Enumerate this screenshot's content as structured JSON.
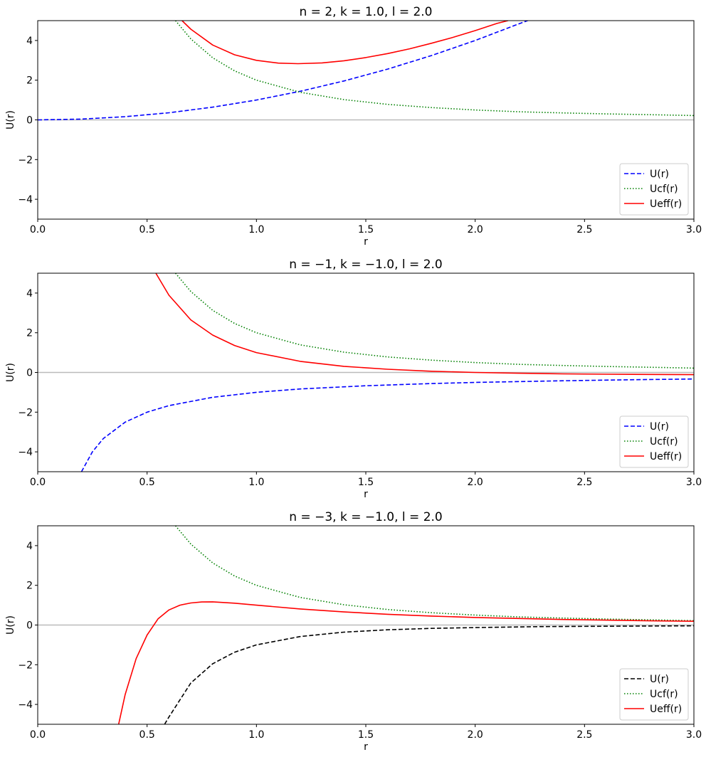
{
  "chart_data": [
    {
      "type": "line",
      "title": "n = 2,   k = 1.0,   l = 2.0",
      "xlabel": "r",
      "ylabel": "U(r)",
      "xlim": [
        0,
        3
      ],
      "ylim": [
        -5,
        5
      ],
      "xticks": [
        "0.0",
        "0.5",
        "1.0",
        "1.5",
        "2.0",
        "2.5",
        "3.0"
      ],
      "yticks": [
        "−4",
        "−2",
        "0",
        "2",
        "4"
      ],
      "xtick_values": [
        0,
        0.5,
        1.0,
        1.5,
        2.0,
        2.5,
        3.0
      ],
      "ytick_values": [
        -4,
        -2,
        0,
        2,
        4
      ],
      "grid": false,
      "legend_position": "lower-right",
      "zero_line": {
        "color": "#bbbbbb"
      },
      "series": [
        {
          "name": "U(r)",
          "color": "#0000ff",
          "dash": "dashed",
          "x": [
            0,
            0.2,
            0.4,
            0.6,
            0.8,
            1.0,
            1.2,
            1.4,
            1.6,
            1.8,
            2.0,
            2.2,
            2.24
          ],
          "y": [
            0,
            0.04,
            0.16,
            0.36,
            0.64,
            1.0,
            1.44,
            1.96,
            2.56,
            3.24,
            4.0,
            4.84,
            5.0
          ]
        },
        {
          "name": "Ucf(r)",
          "color": "#008000",
          "dash": "dotted",
          "x": [
            0.63,
            0.7,
            0.8,
            0.9,
            1.0,
            1.2,
            1.4,
            1.6,
            1.8,
            2.0,
            2.2,
            2.4,
            2.6,
            2.8,
            3.0
          ],
          "y": [
            5.0,
            4.08,
            3.13,
            2.47,
            2.0,
            1.39,
            1.02,
            0.78,
            0.62,
            0.5,
            0.41,
            0.35,
            0.3,
            0.26,
            0.22
          ]
        },
        {
          "name": "Ueff(r)",
          "color": "#ff0000",
          "dash": "solid",
          "x": [
            0.66,
            0.7,
            0.8,
            0.9,
            1.0,
            1.1,
            1.19,
            1.3,
            1.4,
            1.5,
            1.6,
            1.7,
            1.8,
            1.9,
            2.0,
            2.1,
            2.15
          ],
          "y": [
            5.0,
            4.57,
            3.77,
            3.28,
            3.0,
            2.86,
            2.83,
            2.87,
            2.98,
            3.14,
            3.34,
            3.58,
            3.86,
            4.16,
            4.5,
            4.86,
            5.0
          ]
        }
      ]
    },
    {
      "type": "line",
      "title": "n = −1,   k = −1.0,   l = 2.0",
      "xlabel": "r",
      "ylabel": "U(r)",
      "xlim": [
        0,
        3
      ],
      "ylim": [
        -5,
        5
      ],
      "xticks": [
        "0.0",
        "0.5",
        "1.0",
        "1.5",
        "2.0",
        "2.5",
        "3.0"
      ],
      "yticks": [
        "−4",
        "−2",
        "0",
        "2",
        "4"
      ],
      "xtick_values": [
        0,
        0.5,
        1.0,
        1.5,
        2.0,
        2.5,
        3.0
      ],
      "ytick_values": [
        -4,
        -2,
        0,
        2,
        4
      ],
      "grid": false,
      "legend_position": "lower-right",
      "zero_line": {
        "color": "#bbbbbb"
      },
      "series": [
        {
          "name": "U(r)",
          "color": "#0000ff",
          "dash": "dashed",
          "x": [
            0.2,
            0.25,
            0.3,
            0.4,
            0.5,
            0.6,
            0.8,
            1.0,
            1.2,
            1.5,
            1.8,
            2.0,
            2.4,
            2.7,
            3.0
          ],
          "y": [
            -5.0,
            -4.0,
            -3.33,
            -2.5,
            -2.0,
            -1.67,
            -1.25,
            -1.0,
            -0.83,
            -0.67,
            -0.56,
            -0.5,
            -0.42,
            -0.37,
            -0.33
          ]
        },
        {
          "name": "Ucf(r)",
          "color": "#008000",
          "dash": "dotted",
          "x": [
            0.63,
            0.7,
            0.8,
            0.9,
            1.0,
            1.2,
            1.4,
            1.6,
            1.8,
            2.0,
            2.2,
            2.4,
            2.6,
            2.8,
            3.0
          ],
          "y": [
            5.0,
            4.08,
            3.13,
            2.47,
            2.0,
            1.39,
            1.02,
            0.78,
            0.62,
            0.5,
            0.41,
            0.35,
            0.3,
            0.26,
            0.22
          ]
        },
        {
          "name": "Ueff(r)",
          "color": "#ff0000",
          "dash": "solid",
          "x": [
            0.54,
            0.6,
            0.7,
            0.8,
            0.9,
            1.0,
            1.2,
            1.4,
            1.6,
            1.8,
            2.0,
            2.2,
            2.4,
            2.6,
            2.8,
            3.0
          ],
          "y": [
            5.0,
            3.89,
            2.65,
            1.88,
            1.36,
            1.0,
            0.56,
            0.31,
            0.16,
            0.06,
            0.0,
            -0.04,
            -0.07,
            -0.09,
            -0.1,
            -0.11
          ]
        }
      ]
    },
    {
      "type": "line",
      "title": "n = −3,   k = −1.0,   l = 2.0",
      "xlabel": "r",
      "ylabel": "U(r)",
      "xlim": [
        0,
        3
      ],
      "ylim": [
        -5,
        5
      ],
      "xticks": [
        "0.0",
        "0.5",
        "1.0",
        "1.5",
        "2.0",
        "2.5",
        "3.0"
      ],
      "yticks": [
        "−4",
        "−2",
        "0",
        "2",
        "4"
      ],
      "xtick_values": [
        0,
        0.5,
        1.0,
        1.5,
        2.0,
        2.5,
        3.0
      ],
      "ytick_values": [
        -4,
        -2,
        0,
        2,
        4
      ],
      "grid": false,
      "legend_position": "lower-right",
      "zero_line": {
        "color": "#bbbbbb"
      },
      "series": [
        {
          "name": "U(r)",
          "color": "#000000",
          "dash": "dashed",
          "x": [
            0.58,
            0.6,
            0.7,
            0.8,
            0.9,
            1.0,
            1.2,
            1.4,
            1.6,
            1.8,
            2.0,
            2.3,
            2.6,
            3.0
          ],
          "y": [
            -5.0,
            -4.63,
            -2.92,
            -1.95,
            -1.37,
            -1.0,
            -0.58,
            -0.36,
            -0.24,
            -0.17,
            -0.13,
            -0.08,
            -0.06,
            -0.04
          ]
        },
        {
          "name": "Ucf(r)",
          "color": "#008000",
          "dash": "dotted",
          "x": [
            0.63,
            0.7,
            0.8,
            0.9,
            1.0,
            1.2,
            1.4,
            1.6,
            1.8,
            2.0,
            2.2,
            2.4,
            2.6,
            2.8,
            3.0
          ],
          "y": [
            5.0,
            4.08,
            3.13,
            2.47,
            2.0,
            1.39,
            1.02,
            0.78,
            0.62,
            0.5,
            0.41,
            0.35,
            0.3,
            0.26,
            0.22
          ]
        },
        {
          "name": "Ueff(r)",
          "color": "#ff0000",
          "dash": "solid",
          "x": [
            0.37,
            0.4,
            0.45,
            0.5,
            0.55,
            0.6,
            0.65,
            0.7,
            0.75,
            0.8,
            0.9,
            1.0,
            1.2,
            1.4,
            1.6,
            1.8,
            2.0,
            2.4,
            2.8,
            3.0
          ],
          "y": [
            -5.0,
            -3.5,
            -1.69,
            -0.5,
            0.31,
            0.76,
            1.0,
            1.11,
            1.16,
            1.17,
            1.1,
            1.0,
            0.81,
            0.66,
            0.54,
            0.45,
            0.38,
            0.28,
            0.21,
            0.19
          ]
        }
      ]
    }
  ]
}
